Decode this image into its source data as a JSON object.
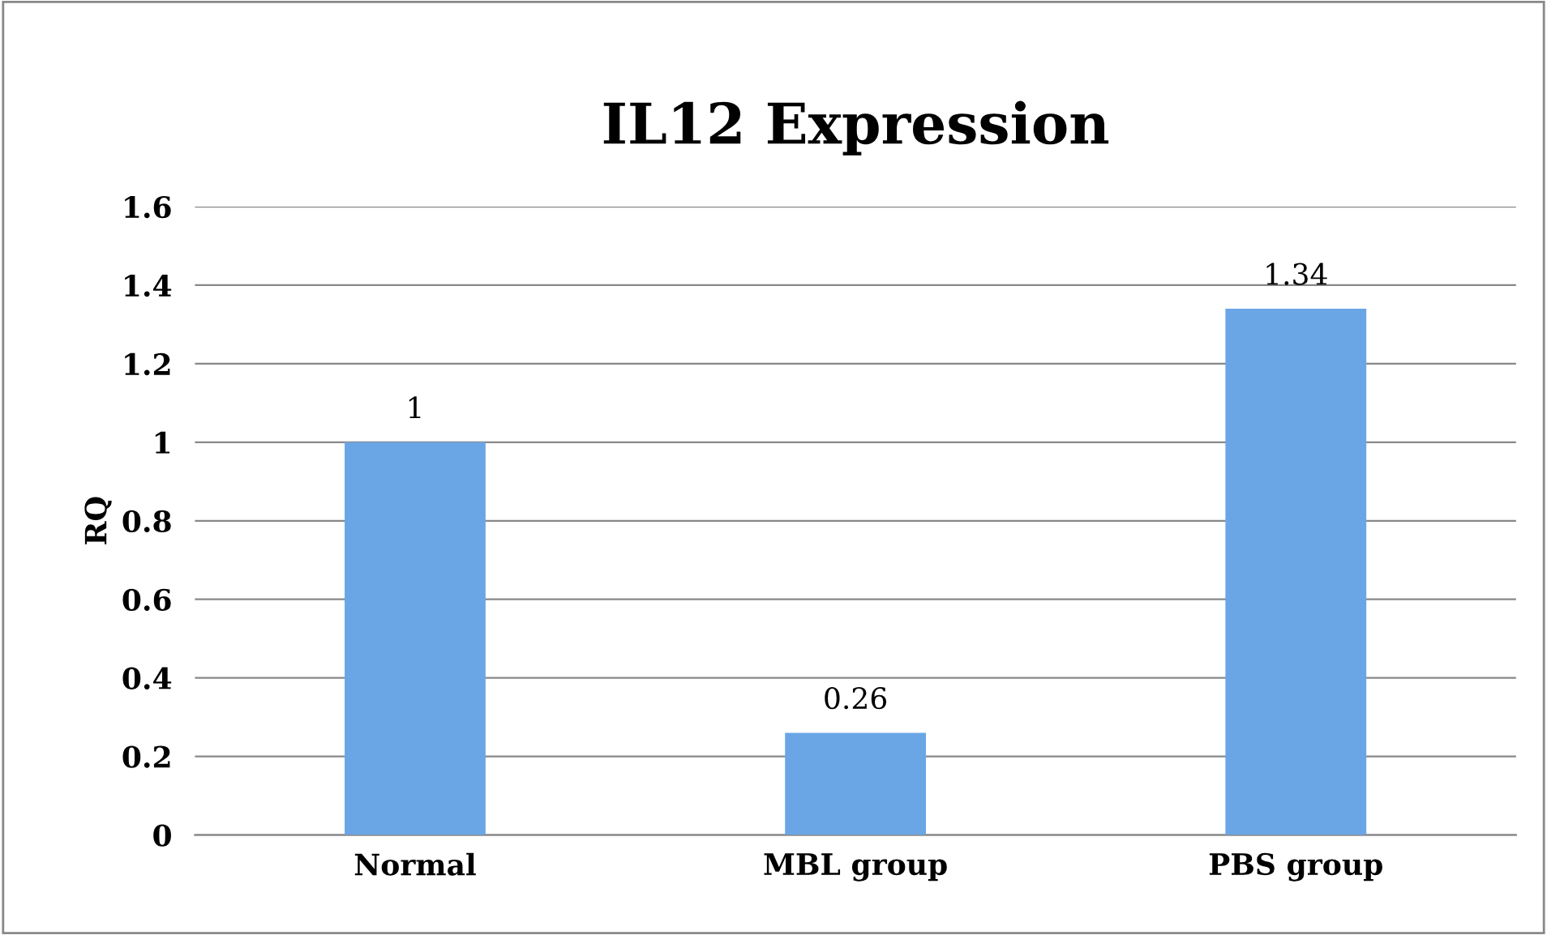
{
  "chart_data": {
    "type": "bar",
    "title": "IL12 Expression",
    "ylabel": "RQ",
    "categories": [
      "Normal",
      "MBL group",
      "PBS group"
    ],
    "values": [
      1,
      0.26,
      1.34
    ],
    "color": "#6aa6e6",
    "ylim": [
      0,
      1.6
    ],
    "yticks": [
      0,
      0.2,
      0.4,
      0.6,
      0.8,
      1,
      1.2,
      1.4,
      1.6
    ],
    "grid": "y",
    "data_labels": true
  }
}
